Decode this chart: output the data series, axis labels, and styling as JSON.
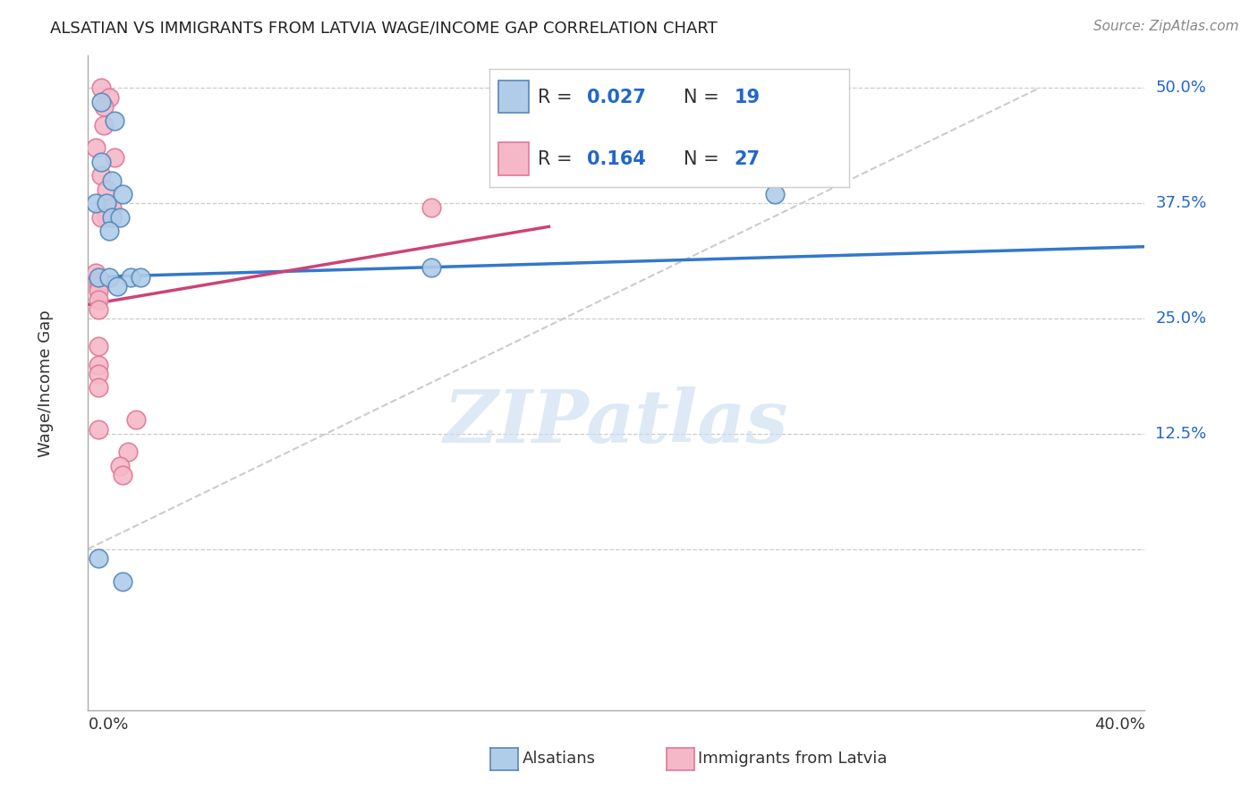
{
  "title": "ALSATIAN VS IMMIGRANTS FROM LATVIA WAGE/INCOME GAP CORRELATION CHART",
  "source": "Source: ZipAtlas.com",
  "ylabel": "Wage/Income Gap",
  "xlim": [
    0.0,
    0.4
  ],
  "ylim": [
    -0.175,
    0.535
  ],
  "yticks": [
    0.0,
    0.125,
    0.25,
    0.375,
    0.5
  ],
  "ytick_labels": [
    "",
    "12.5%",
    "25.0%",
    "37.5%",
    "50.0%"
  ],
  "xtick_left": "0.0%",
  "xtick_right": "40.0%",
  "background_color": "#ffffff",
  "grid_color": "#cccccc",
  "watermark_text": "ZIPatlas",
  "alsatians_color": "#b0cce8",
  "latvia_color": "#f5b8c8",
  "alsatians_edge": "#5588bb",
  "latvia_edge": "#e07898",
  "legend_text_color": "#2266cc",
  "legend_R1": "0.027",
  "legend_N1": "19",
  "legend_R2": "0.164",
  "legend_N2": "27",
  "alsatians_x": [
    0.005,
    0.01,
    0.005,
    0.009,
    0.013,
    0.003,
    0.007,
    0.009,
    0.012,
    0.008,
    0.004,
    0.016,
    0.02,
    0.008,
    0.011,
    0.26,
    0.13,
    0.004,
    0.013
  ],
  "alsatians_y": [
    0.485,
    0.465,
    0.42,
    0.4,
    0.385,
    0.375,
    0.375,
    0.36,
    0.36,
    0.345,
    0.295,
    0.295,
    0.295,
    0.295,
    0.285,
    0.385,
    0.305,
    -0.01,
    -0.035
  ],
  "latvia_x": [
    0.005,
    0.008,
    0.006,
    0.006,
    0.003,
    0.01,
    0.005,
    0.007,
    0.009,
    0.007,
    0.005,
    0.13,
    0.003,
    0.004,
    0.004,
    0.004,
    0.004,
    0.004,
    0.004,
    0.004,
    0.004,
    0.004,
    0.004,
    0.018,
    0.015,
    0.012,
    0.013
  ],
  "latvia_y": [
    0.5,
    0.49,
    0.48,
    0.46,
    0.435,
    0.425,
    0.405,
    0.39,
    0.37,
    0.36,
    0.36,
    0.37,
    0.3,
    0.29,
    0.285,
    0.28,
    0.27,
    0.26,
    0.22,
    0.2,
    0.19,
    0.175,
    0.13,
    0.14,
    0.105,
    0.09,
    0.08
  ],
  "blue_line_x": [
    0.0,
    0.4
  ],
  "blue_line_y": [
    0.295,
    0.328
  ],
  "pink_line_x": [
    0.0,
    0.175
  ],
  "pink_line_y": [
    0.265,
    0.35
  ],
  "diag_line_x": [
    0.0,
    0.36
  ],
  "diag_line_y": [
    0.0,
    0.5
  ],
  "dot_size": 220,
  "title_fontsize": 13,
  "label_fontsize": 13,
  "legend_fontsize": 15
}
